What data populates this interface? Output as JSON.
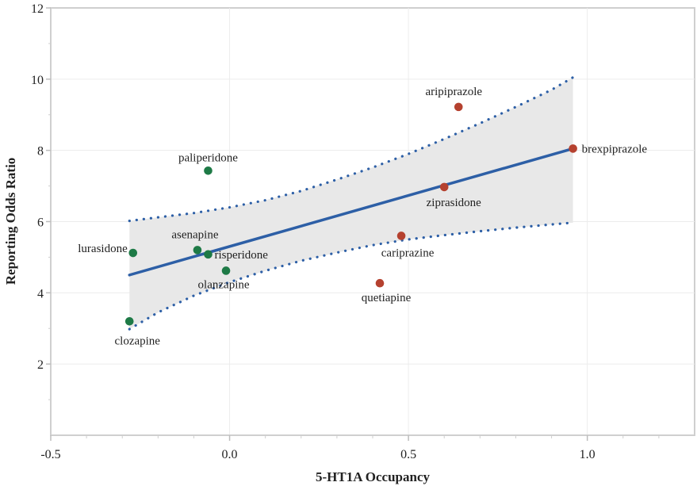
{
  "chart_data": {
    "type": "scatter",
    "title": "",
    "xlabel": "5-HT1A Occupancy",
    "ylabel": "Reporting Odds Ratio",
    "xlim": [
      -0.5,
      1.3
    ],
    "ylim": [
      0,
      12
    ],
    "xticks": [
      "-0.5",
      "0.0",
      "0.5",
      "1.0"
    ],
    "yticks": [
      "2",
      "4",
      "6",
      "8",
      "10",
      "12"
    ],
    "grid": true,
    "colors": {
      "antagonist": "#1e7a46",
      "partial_agonist": "#b5412f",
      "fit_line": "#2d5fa6",
      "band": "#e8e8e8"
    },
    "points": [
      {
        "label": "clozapine",
        "x": -0.28,
        "y": 3.2,
        "group": "antagonist"
      },
      {
        "label": "lurasidone",
        "x": -0.27,
        "y": 5.12,
        "group": "antagonist"
      },
      {
        "label": "asenapine",
        "x": -0.09,
        "y": 5.2,
        "group": "antagonist"
      },
      {
        "label": "risperidone",
        "x": -0.06,
        "y": 5.08,
        "group": "antagonist"
      },
      {
        "label": "paliperidone",
        "x": -0.06,
        "y": 7.43,
        "group": "antagonist"
      },
      {
        "label": "olanzapine",
        "x": -0.01,
        "y": 4.62,
        "group": "antagonist"
      },
      {
        "label": "quetiapine",
        "x": 0.42,
        "y": 4.27,
        "group": "partial_agonist"
      },
      {
        "label": "cariprazine",
        "x": 0.48,
        "y": 5.6,
        "group": "partial_agonist"
      },
      {
        "label": "ziprasidone",
        "x": 0.6,
        "y": 6.97,
        "group": "partial_agonist"
      },
      {
        "label": "aripiprazole",
        "x": 0.64,
        "y": 9.22,
        "group": "partial_agonist"
      },
      {
        "label": "brexpiprazole",
        "x": 0.96,
        "y": 8.05,
        "group": "partial_agonist"
      }
    ],
    "fit_line": {
      "x": [
        -0.28,
        0.96
      ],
      "y": [
        4.5,
        8.05
      ]
    },
    "confidence_band": {
      "x": [
        -0.28,
        -0.2,
        -0.1,
        0.0,
        0.1,
        0.2,
        0.3,
        0.4,
        0.5,
        0.6,
        0.7,
        0.8,
        0.9,
        0.96
      ],
      "upper": [
        6.02,
        6.12,
        6.24,
        6.4,
        6.6,
        6.86,
        7.18,
        7.52,
        7.9,
        8.32,
        8.76,
        9.22,
        9.7,
        10.05
      ],
      "lower": [
        2.98,
        3.45,
        3.92,
        4.3,
        4.62,
        4.9,
        5.13,
        5.34,
        5.5,
        5.62,
        5.73,
        5.83,
        5.92,
        5.97
      ]
    }
  }
}
